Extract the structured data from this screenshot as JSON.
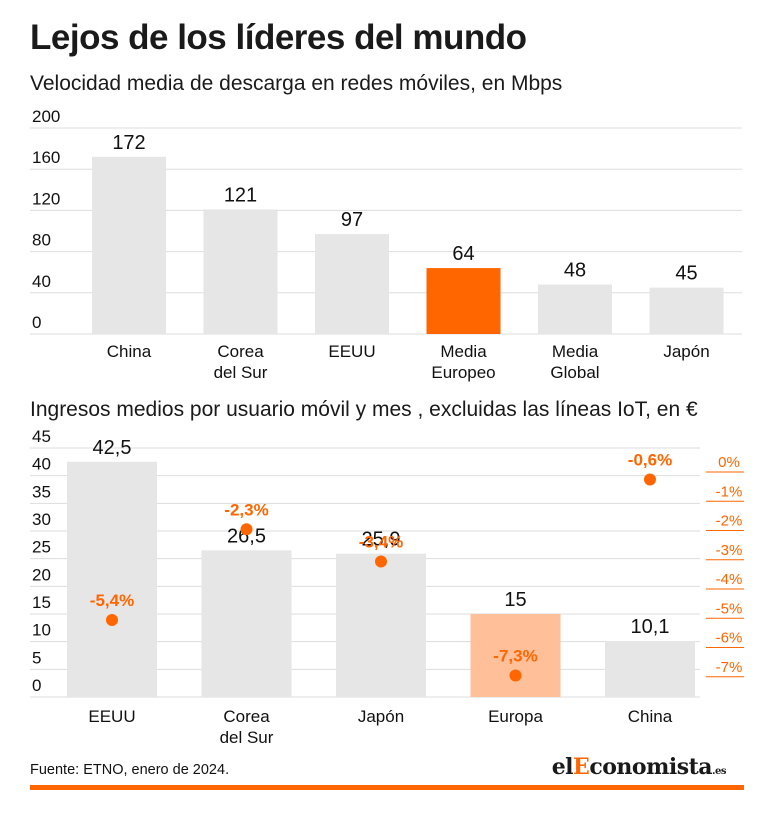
{
  "title": "Lejos de los líderes del mundo",
  "source": "Fuente: ETNO, enero de 2024.",
  "brand": {
    "prefix": "el",
    "highlight": "E",
    "rest": "conomista",
    "suffix": ".es"
  },
  "colors": {
    "bar": "#e6e6e6",
    "accent": "#ff6600",
    "accent_light": "#ffbf99",
    "grid": "#dddddd",
    "text": "#111111"
  },
  "chart_data": [
    {
      "type": "bar",
      "title": "Velocidad media de descarga en redes móviles, en Mbps",
      "categories": [
        [
          "China"
        ],
        [
          "Corea",
          "del Sur"
        ],
        [
          "EEUU"
        ],
        [
          "Media",
          "Europeo"
        ],
        [
          "Media",
          "Global"
        ],
        [
          "Japón"
        ]
      ],
      "values": [
        172,
        121,
        97,
        64,
        48,
        45
      ],
      "value_labels": [
        "172",
        "121",
        "97",
        "64",
        "48",
        "45"
      ],
      "highlight_index": 3,
      "ylim": [
        0,
        200
      ],
      "yticks": [
        0,
        40,
        80,
        120,
        160,
        200
      ],
      "ytick_labels": [
        "0",
        "40",
        "80",
        "120",
        "160",
        "200"
      ],
      "grid": true
    },
    {
      "type": "bar",
      "title": "Ingresos medios por usuario móvil y mes , excluidas las líneas IoT, en €",
      "categories": [
        [
          "EEUU"
        ],
        [
          "Corea",
          "del Sur"
        ],
        [
          "Japón"
        ],
        [
          "Europa"
        ],
        [
          "China"
        ]
      ],
      "values": [
        42.5,
        26.5,
        25.9,
        15,
        10.1
      ],
      "value_labels": [
        "42,5",
        "26,5",
        "25,9",
        "15",
        "10,1"
      ],
      "highlight_index": 3,
      "ylim": [
        0,
        45
      ],
      "yticks": [
        0,
        5,
        10,
        15,
        20,
        25,
        30,
        35,
        40,
        45
      ],
      "ytick_labels": [
        "0",
        "5",
        "10",
        "15",
        "20",
        "25",
        "30",
        "35",
        "40",
        "45"
      ],
      "grid": true,
      "secondary": {
        "type": "scatter",
        "values": [
          -5.4,
          -2.3,
          -3.4,
          -7.3,
          -0.6
        ],
        "value_labels": [
          "-5,4%",
          "-2,3%",
          "-3,4%",
          "-7,3%",
          "-0,6%"
        ],
        "ylim": [
          -7.35,
          0
        ],
        "yticks": [
          0,
          -1,
          -2,
          -3,
          -4,
          -5,
          -6,
          -7
        ],
        "ytick_labels": [
          "0%",
          "-1%",
          "-2%",
          "-3%",
          "-4%",
          "-5%",
          "-6%",
          "-7%"
        ],
        "axis_position": "right"
      }
    }
  ]
}
